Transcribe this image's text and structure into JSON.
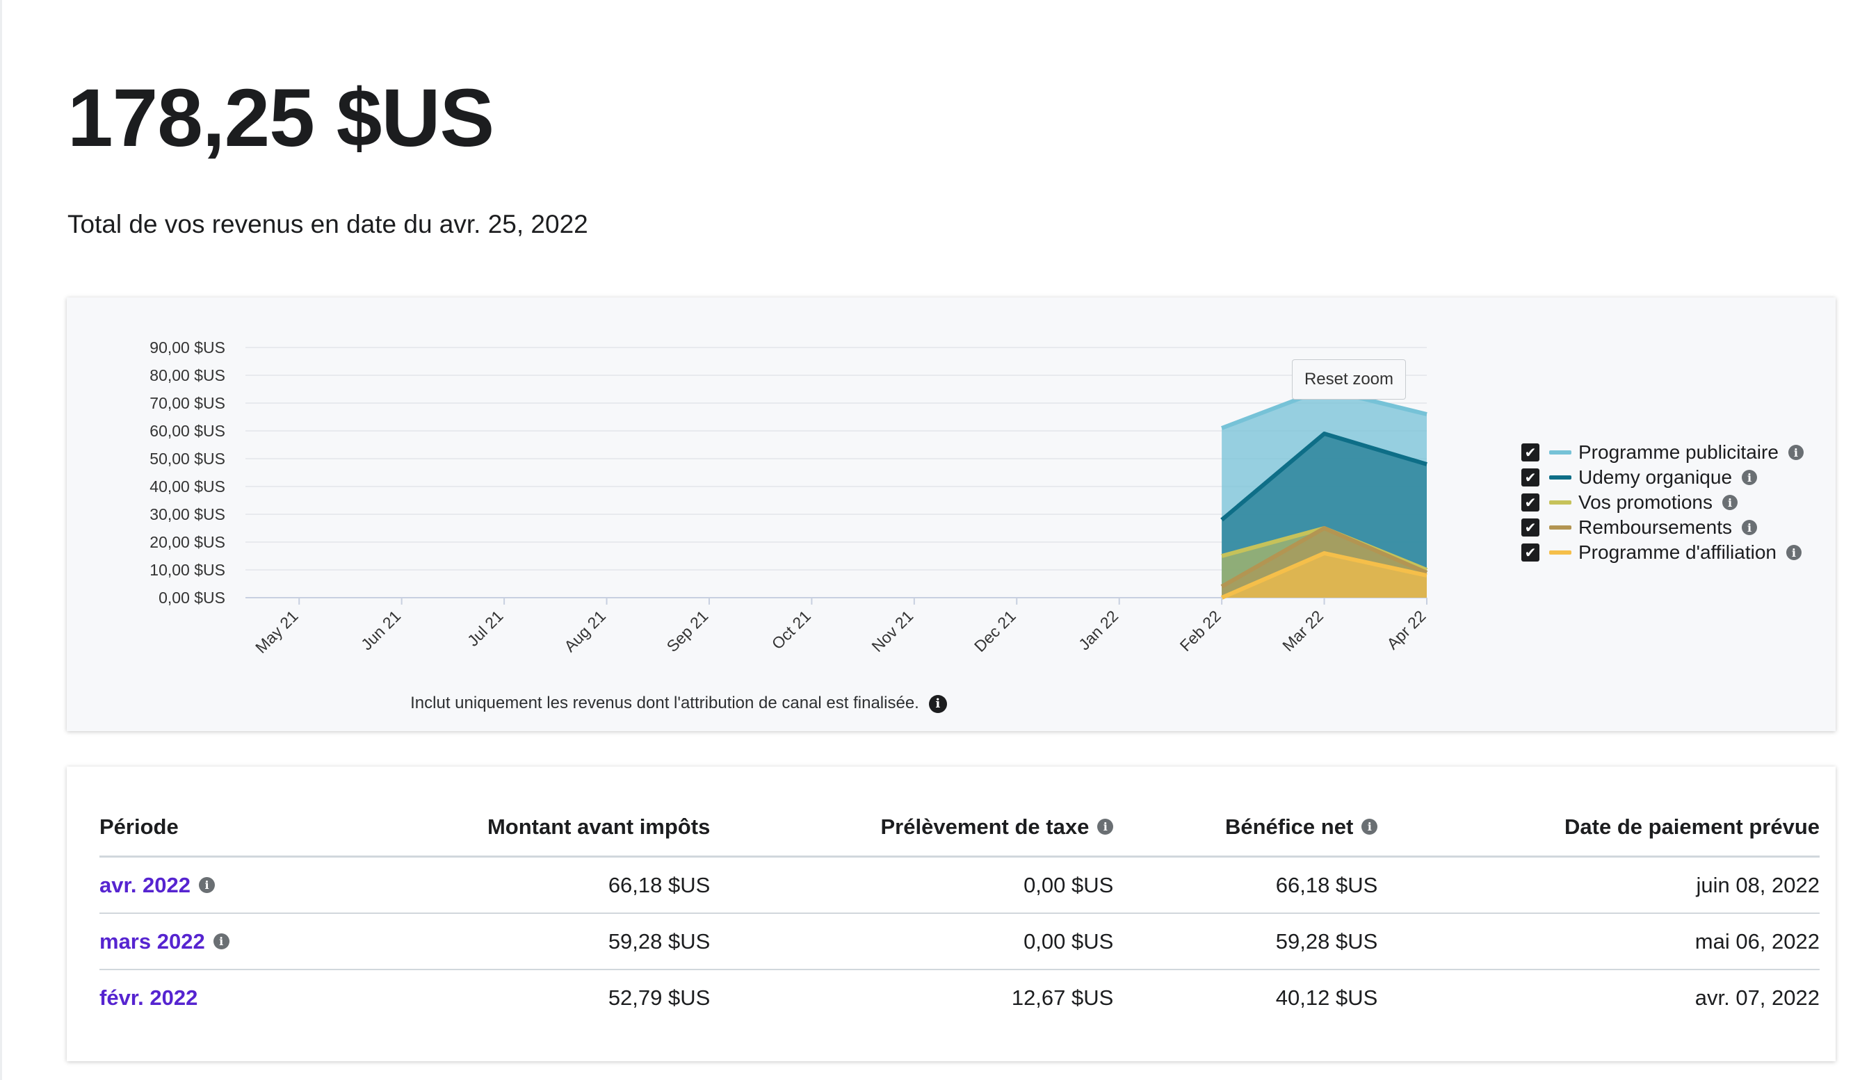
{
  "header": {
    "total": "178,25 $US",
    "subtitle": "Total de vos revenus en date du avr. 25, 2022"
  },
  "chart": {
    "reset_zoom_label": "Reset zoom",
    "note": "Inclut uniquement les revenus dont l'attribution de canal est finalisée.",
    "legend": [
      {
        "label": "Programme publicitaire",
        "color": "#76c2d7"
      },
      {
        "label": "Udemy organique",
        "color": "#0e6e87"
      },
      {
        "label": "Vos promotions",
        "color": "#c6c25a"
      },
      {
        "label": "Remboursements",
        "color": "#b39552"
      },
      {
        "label": "Programme d'affiliation",
        "color": "#f5bf4a"
      }
    ]
  },
  "chart_data": {
    "type": "area",
    "x": [
      "May 21",
      "Jun 21",
      "Jul 21",
      "Aug 21",
      "Sep 21",
      "Oct 21",
      "Nov 21",
      "Dec 21",
      "Jan 22",
      "Feb 22",
      "Mar 22",
      "Apr 22"
    ],
    "y_ticks": [
      "0,00 $US",
      "10,00 $US",
      "20,00 $US",
      "30,00 $US",
      "40,00 $US",
      "50,00 $US",
      "60,00 $US",
      "70,00 $US",
      "80,00 $US",
      "90,00 $US"
    ],
    "ylim": [
      0,
      90
    ],
    "grid": true,
    "legend_position": "right",
    "series": [
      {
        "name": "Programme publicitaire",
        "values": [
          null,
          null,
          null,
          null,
          null,
          null,
          null,
          null,
          null,
          61,
          75,
          66
        ]
      },
      {
        "name": "Udemy organique",
        "values": [
          null,
          null,
          null,
          null,
          null,
          null,
          null,
          null,
          null,
          28,
          59,
          48
        ]
      },
      {
        "name": "Vos promotions",
        "values": [
          null,
          null,
          null,
          null,
          null,
          null,
          null,
          null,
          null,
          15,
          25,
          10
        ]
      },
      {
        "name": "Remboursements",
        "values": [
          null,
          null,
          null,
          null,
          null,
          null,
          null,
          null,
          null,
          4,
          25,
          9
        ]
      },
      {
        "name": "Programme d'affiliation",
        "values": [
          null,
          null,
          null,
          null,
          null,
          null,
          null,
          null,
          null,
          0,
          16,
          8
        ]
      }
    ]
  },
  "table": {
    "headers": {
      "period": "Période",
      "gross": "Montant avant impôts",
      "tax": "Prélèvement de taxe",
      "net": "Bénéfice net",
      "payment_date": "Date de paiement prévue"
    },
    "rows": [
      {
        "period": "avr. 2022",
        "gross": "66,18 $US",
        "tax": "0,00 $US",
        "net": "66,18 $US",
        "payment_date": "juin 08, 2022"
      },
      {
        "period": "mars 2022",
        "gross": "59,28 $US",
        "tax": "0,00 $US",
        "net": "59,28 $US",
        "payment_date": "mai 06, 2022"
      },
      {
        "period": "févr. 2022",
        "gross": "52,79 $US",
        "tax": "12,67 $US",
        "net": "40,12 $US",
        "payment_date": "avr. 07, 2022"
      }
    ]
  }
}
